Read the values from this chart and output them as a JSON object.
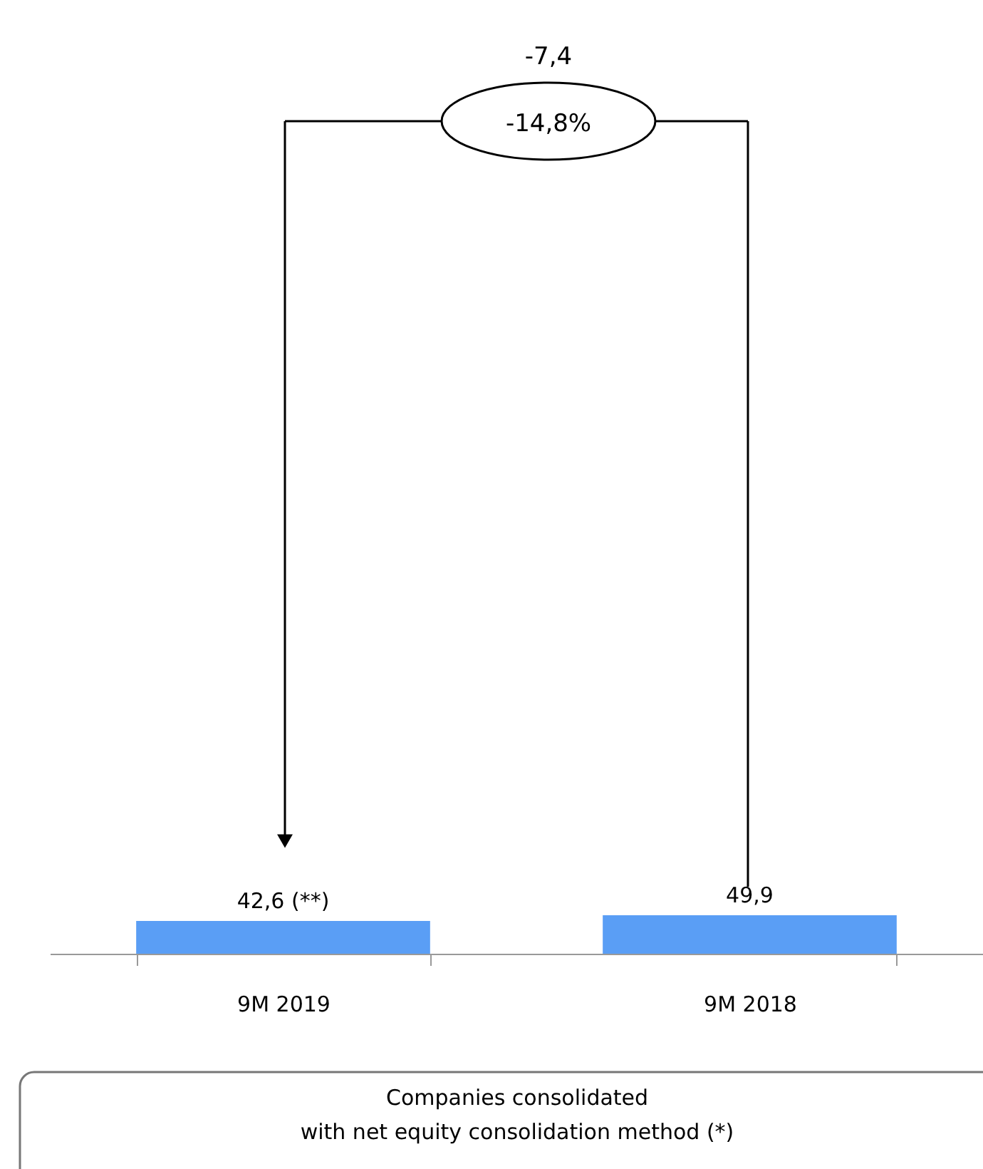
{
  "chart_data": {
    "type": "bar",
    "categories": [
      "9M 2019",
      "9M 2018"
    ],
    "values": [
      42.6,
      49.9
    ],
    "color": "#5a9ef5",
    "value_labels": [
      "42,6 (**)",
      "49,9"
    ],
    "annotations": [
      "-7,4",
      "-14,8%",
      "Companies consolidated\nwith net equity consolidation method (*)"
    ]
  }
}
